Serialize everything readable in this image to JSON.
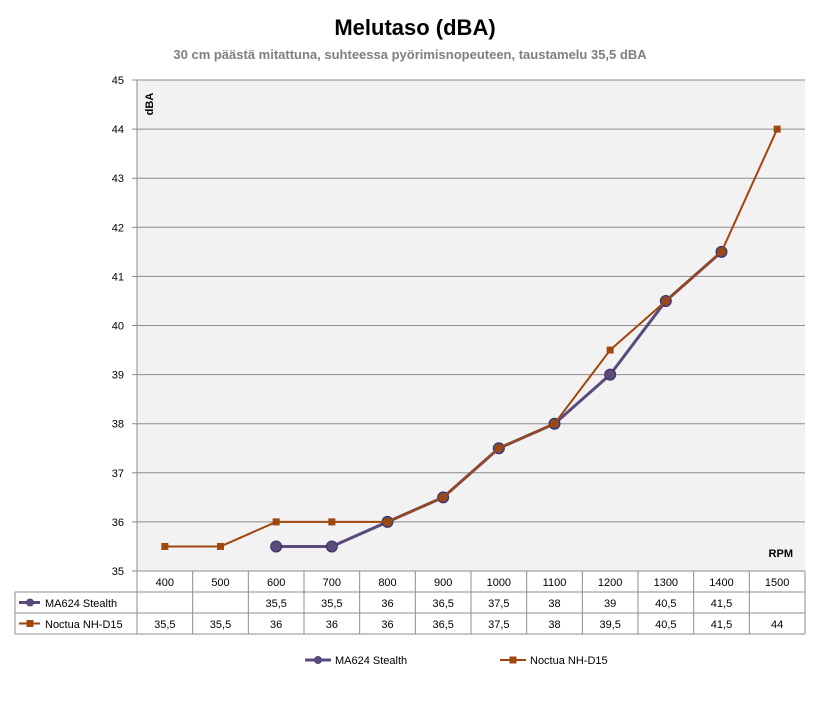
{
  "chart_data": {
    "type": "line",
    "title": "Melutaso (dBA)",
    "subtitle": "30 cm päästä mitattuna, suhteessa pyörimisnopeuteen, taustamelu 35,5 dBA",
    "ylabel": "dBA",
    "xlabel": "RPM",
    "ylim": [
      35,
      45
    ],
    "yticks": [
      "35",
      "36",
      "37",
      "38",
      "39",
      "40",
      "41",
      "42",
      "43",
      "44",
      "45"
    ],
    "grid": true,
    "legend_position": "bottom",
    "categories": [
      "400",
      "500",
      "600",
      "700",
      "800",
      "900",
      "1000",
      "1100",
      "1200",
      "1300",
      "1400",
      "1500"
    ],
    "series": [
      {
        "name": "MA624 Stealth",
        "color": "#5b4a7c",
        "marker": "circle",
        "values": [
          null,
          null,
          35.5,
          35.5,
          36,
          36.5,
          37.5,
          38,
          39,
          40.5,
          41.5,
          null
        ],
        "labels": [
          "",
          "",
          "35,5",
          "35,5",
          "36",
          "36,5",
          "37,5",
          "38",
          "39",
          "40,5",
          "41,5",
          ""
        ]
      },
      {
        "name": "Noctua NH-D15",
        "color": "#a0470d",
        "marker": "square",
        "values": [
          35.5,
          35.5,
          36,
          36,
          36,
          36.5,
          37.5,
          38,
          39.5,
          40.5,
          41.5,
          44
        ],
        "labels": [
          "35,5",
          "35,5",
          "36",
          "36",
          "36",
          "36,5",
          "37,5",
          "38",
          "39,5",
          "40,5",
          "41,5",
          "44"
        ]
      }
    ]
  }
}
